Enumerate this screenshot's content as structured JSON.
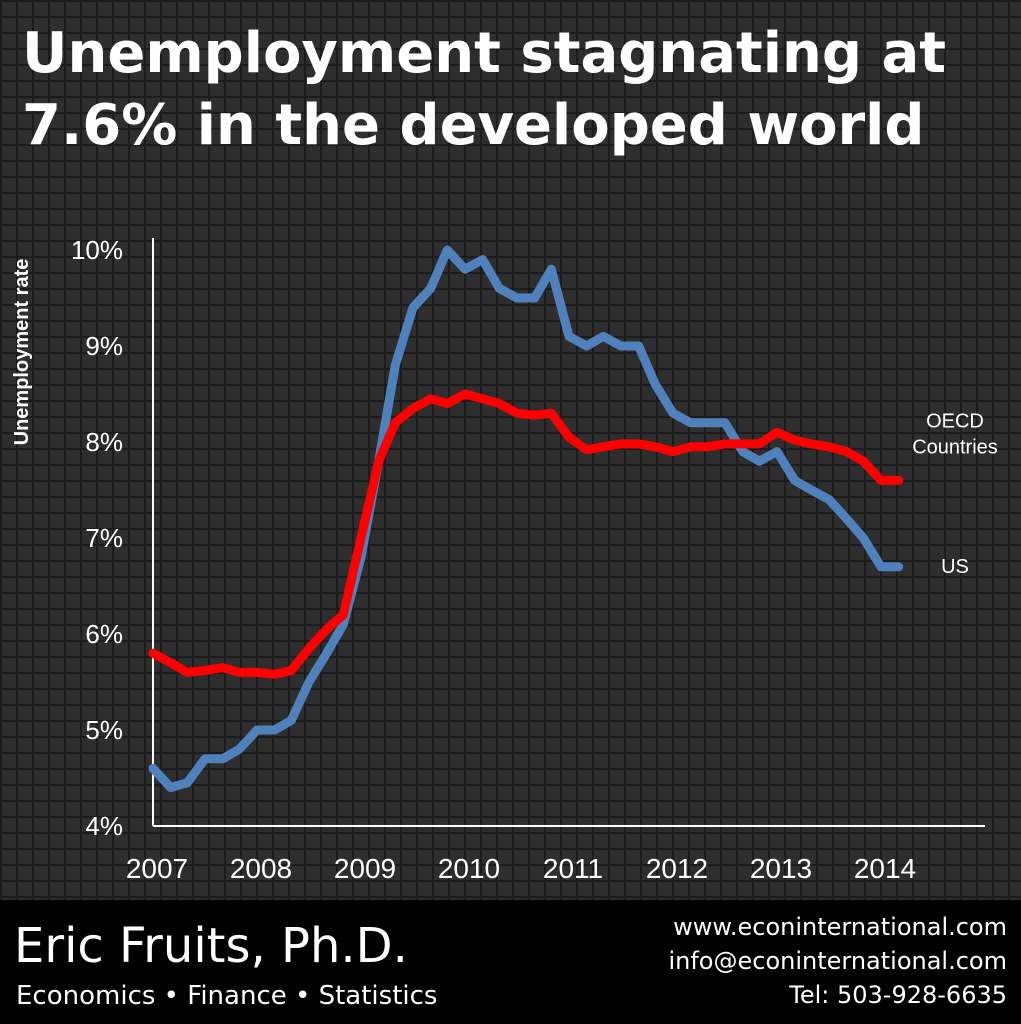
{
  "title": {
    "line1": "Unemployment stagnating at",
    "line2": "7.6% in the developed world"
  },
  "chart_data": {
    "type": "line",
    "title": "Unemployment stagnating at 7.6% in the developed world",
    "xlabel": "",
    "ylabel": "Unemployment rate",
    "xlim": [
      2007.0,
      2015.0
    ],
    "ylim": [
      4,
      10
    ],
    "x_ticks": [
      "2007",
      "2008",
      "2009",
      "2010",
      "2011",
      "2012",
      "2013",
      "2014"
    ],
    "y_ticks": [
      "4%",
      "5%",
      "6%",
      "7%",
      "8%",
      "9%",
      "10%"
    ],
    "grid": false,
    "legend": "direct labels at line ends",
    "series": [
      {
        "name": "OECD Countries",
        "color": "#ff0000",
        "points": [
          [
            2007.0,
            5.8
          ],
          [
            2007.17,
            5.7
          ],
          [
            2007.33,
            5.6
          ],
          [
            2007.5,
            5.62
          ],
          [
            2007.67,
            5.65
          ],
          [
            2007.83,
            5.6
          ],
          [
            2008.0,
            5.6
          ],
          [
            2008.17,
            5.58
          ],
          [
            2008.33,
            5.62
          ],
          [
            2008.5,
            5.85
          ],
          [
            2008.67,
            6.05
          ],
          [
            2008.83,
            6.2
          ],
          [
            2009.0,
            7.0
          ],
          [
            2009.17,
            7.8
          ],
          [
            2009.33,
            8.2
          ],
          [
            2009.5,
            8.35
          ],
          [
            2009.67,
            8.45
          ],
          [
            2009.83,
            8.4
          ],
          [
            2010.0,
            8.5
          ],
          [
            2010.17,
            8.45
          ],
          [
            2010.33,
            8.4
          ],
          [
            2010.5,
            8.3
          ],
          [
            2010.67,
            8.28
          ],
          [
            2010.83,
            8.3
          ],
          [
            2011.0,
            8.05
          ],
          [
            2011.17,
            7.92
          ],
          [
            2011.33,
            7.95
          ],
          [
            2011.5,
            7.98
          ],
          [
            2011.67,
            7.98
          ],
          [
            2011.83,
            7.95
          ],
          [
            2012.0,
            7.9
          ],
          [
            2012.17,
            7.95
          ],
          [
            2012.33,
            7.95
          ],
          [
            2012.5,
            7.98
          ],
          [
            2012.67,
            7.98
          ],
          [
            2012.83,
            7.98
          ],
          [
            2013.0,
            8.1
          ],
          [
            2013.17,
            8.02
          ],
          [
            2013.33,
            7.98
          ],
          [
            2013.5,
            7.95
          ],
          [
            2013.67,
            7.9
          ],
          [
            2013.83,
            7.8
          ],
          [
            2014.0,
            7.6
          ],
          [
            2014.17,
            7.6
          ]
        ]
      },
      {
        "name": "US",
        "color": "#4f81bd",
        "points": [
          [
            2007.0,
            4.6
          ],
          [
            2007.17,
            4.4
          ],
          [
            2007.33,
            4.45
          ],
          [
            2007.5,
            4.7
          ],
          [
            2007.67,
            4.7
          ],
          [
            2007.83,
            4.8
          ],
          [
            2008.0,
            5.0
          ],
          [
            2008.17,
            5.0
          ],
          [
            2008.33,
            5.1
          ],
          [
            2008.5,
            5.5
          ],
          [
            2008.67,
            5.8
          ],
          [
            2008.83,
            6.1
          ],
          [
            2009.0,
            6.8
          ],
          [
            2009.17,
            7.8
          ],
          [
            2009.33,
            8.8
          ],
          [
            2009.5,
            9.4
          ],
          [
            2009.67,
            9.6
          ],
          [
            2009.83,
            10.0
          ],
          [
            2010.0,
            9.8
          ],
          [
            2010.17,
            9.9
          ],
          [
            2010.33,
            9.6
          ],
          [
            2010.5,
            9.5
          ],
          [
            2010.67,
            9.5
          ],
          [
            2010.83,
            9.8
          ],
          [
            2011.0,
            9.1
          ],
          [
            2011.17,
            9.0
          ],
          [
            2011.33,
            9.1
          ],
          [
            2011.5,
            9.0
          ],
          [
            2011.67,
            9.0
          ],
          [
            2011.83,
            8.6
          ],
          [
            2012.0,
            8.3
          ],
          [
            2012.17,
            8.2
          ],
          [
            2012.33,
            8.2
          ],
          [
            2012.5,
            8.2
          ],
          [
            2012.67,
            7.9
          ],
          [
            2012.83,
            7.8
          ],
          [
            2013.0,
            7.9
          ],
          [
            2013.17,
            7.6
          ],
          [
            2013.33,
            7.5
          ],
          [
            2013.5,
            7.4
          ],
          [
            2013.67,
            7.2
          ],
          [
            2013.83,
            7.0
          ],
          [
            2014.0,
            6.7
          ],
          [
            2014.17,
            6.7
          ]
        ]
      }
    ],
    "annotations": [
      {
        "series": 0,
        "lines": [
          "OECD",
          "Countries"
        ]
      },
      {
        "series": 1,
        "lines": [
          "US"
        ]
      }
    ]
  },
  "footer": {
    "author": "Eric Fruits, Ph.D.",
    "tagline": "Economics • Finance • Statistics",
    "website": "www.econinternational.com",
    "email": "info@econinternational.com",
    "phone": "Tel: 503-928-6635"
  }
}
